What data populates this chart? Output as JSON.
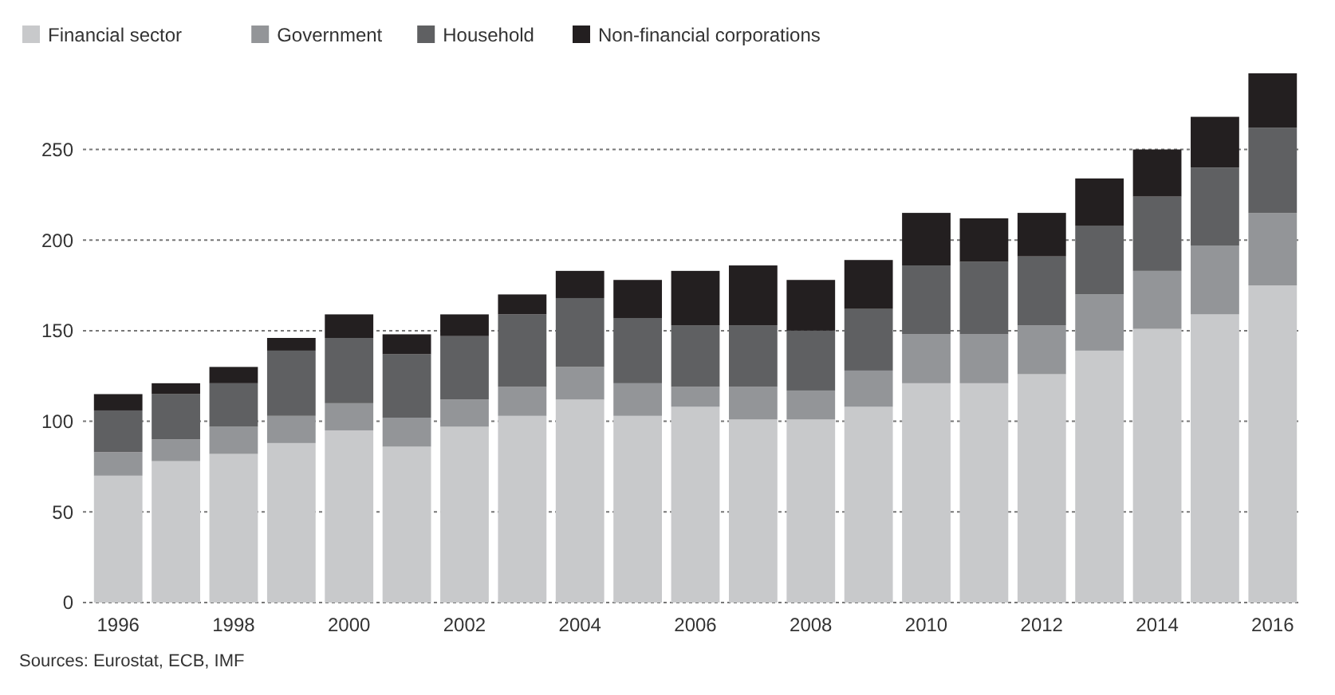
{
  "chart_data": {
    "type": "bar",
    "stacked": true,
    "categories": [
      "1996",
      null,
      "1998",
      null,
      "2000",
      null,
      "2002",
      null,
      "2004",
      null,
      "2006",
      null,
      "2008",
      null,
      "2010",
      null,
      "2012",
      null,
      "2014",
      null,
      "2016"
    ],
    "series": [
      {
        "name": "Financial sector",
        "color": "#c8c9cb",
        "values": [
          70,
          78,
          82,
          88,
          95,
          86,
          97,
          103,
          112,
          103,
          108,
          101,
          101,
          108,
          121,
          121,
          126,
          139,
          151,
          159,
          175
        ]
      },
      {
        "name": "Government",
        "color": "#939598",
        "values": [
          13,
          12,
          15,
          15,
          15,
          16,
          15,
          16,
          18,
          18,
          11,
          18,
          16,
          20,
          27,
          27,
          27,
          31,
          32,
          38,
          40
        ]
      },
      {
        "name": "Household",
        "color": "#5f6062",
        "values": [
          23,
          25,
          24,
          36,
          36,
          35,
          35,
          40,
          38,
          36,
          34,
          34,
          33,
          34,
          38,
          40,
          38,
          38,
          41,
          43,
          47
        ]
      },
      {
        "name": "Non-financial corporations",
        "color": "#231f20",
        "values": [
          9,
          6,
          9,
          7,
          13,
          11,
          12,
          11,
          15,
          21,
          30,
          33,
          28,
          27,
          29,
          24,
          24,
          26,
          26,
          28,
          30
        ]
      }
    ],
    "ylim": [
      0,
      292
    ],
    "yticks": [
      0,
      50,
      100,
      150,
      200,
      250
    ],
    "grid": "y",
    "line_style": "dotted",
    "legend": "top left",
    "annotations": [
      "Sources: Eurostat, ECB, IMF"
    ]
  }
}
